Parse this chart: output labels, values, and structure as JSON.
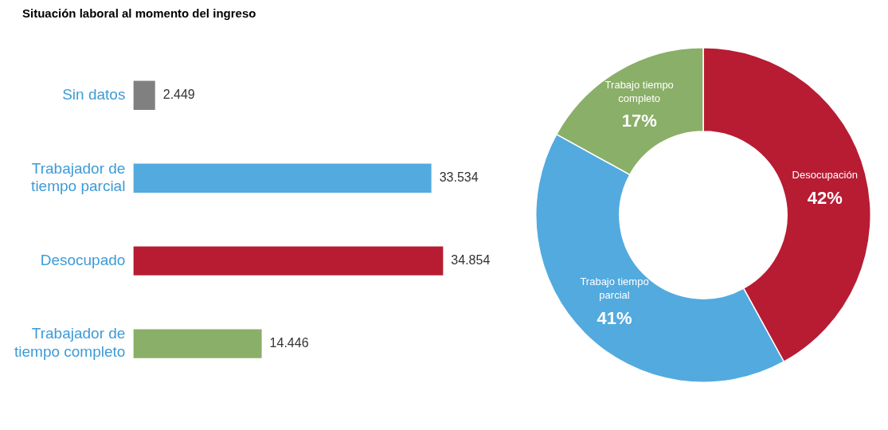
{
  "chart_data": [
    {
      "type": "bar",
      "title": "Situación laboral al momento del ingreso",
      "orientation": "horizontal",
      "categories": [
        "Sin datos",
        "Trabajador de tiempo parcial",
        "Desocupado",
        "Trabajador de tiempo completo"
      ],
      "values": [
        2449,
        33534,
        34854,
        14446
      ],
      "colors": [
        "#808080",
        "#52aadf",
        "#b71c33",
        "#8aaf68"
      ],
      "value_labels": [
        "2.449",
        "33.534",
        "34.854",
        "14.446"
      ],
      "grid": false,
      "legend": false
    },
    {
      "type": "donut",
      "categories": [
        "Desocupación",
        "Trabajo tiempo parcial",
        "Trabajo tiempo completo"
      ],
      "values": [
        42,
        41,
        17
      ],
      "colors": [
        "#b71c33",
        "#52aadf",
        "#8aaf68"
      ],
      "value_labels": [
        "42%",
        "41%",
        "17%"
      ],
      "legend": false
    }
  ]
}
